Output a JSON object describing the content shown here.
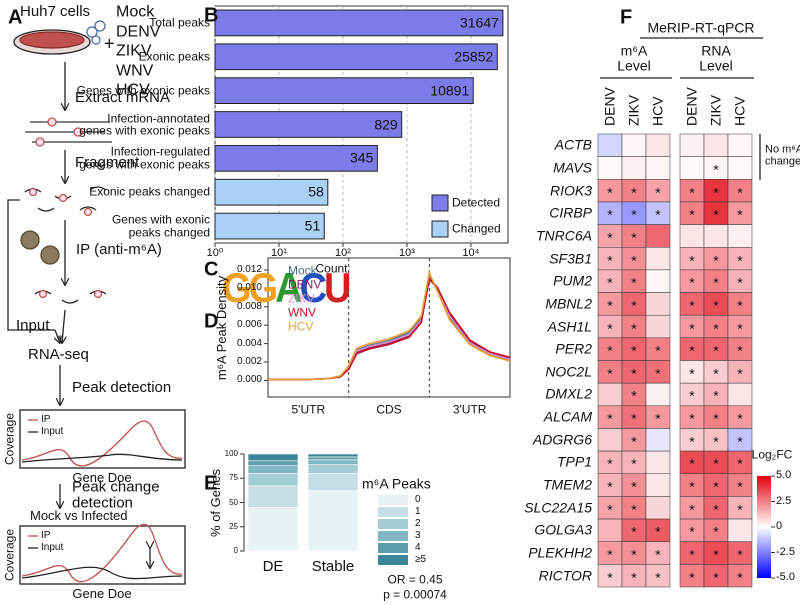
{
  "panel_labels": [
    "A",
    "B",
    "C",
    "D",
    "E",
    "F"
  ],
  "workflow": {
    "cells": "Huh7 cells",
    "plus": "+",
    "conditions": [
      "Mock",
      "DENV",
      "ZIKV",
      "WNV",
      "HCV"
    ],
    "steps": [
      "Extract mRNA",
      "Fragment",
      "IP (anti-m⁶A)",
      "RNA-seq",
      "Peak detection",
      "Peak change\ndetection"
    ],
    "input": "Input",
    "coverage_plots": [
      {
        "y_label": "Coverage",
        "x_label": "Gene Doe",
        "legend": [
          "IP",
          "Input"
        ]
      },
      {
        "y_label": "Coverage",
        "x_label": "Gene Doe",
        "legend": [
          "IP",
          "Input"
        ],
        "comparison": "Mock vs Infected"
      }
    ]
  },
  "motif": "GGACU",
  "chart_data": [
    {
      "type": "hbar",
      "x_label": "Count",
      "log_scale": true,
      "grid": true,
      "legend": "lower-right",
      "categories": [
        "Total peaks",
        "Exonic peaks",
        "Genes with exonic peaks",
        "Infection-annotated\ngenes with exonic peaks",
        "Infection-regulated\ngenes with exonic peaks",
        "Exonic peaks changed",
        "Genes with exonic\npeaks changed"
      ],
      "series": [
        {
          "name": "Detected",
          "color": "#7b7bea",
          "values": [
            31647,
            25852,
            10891,
            829,
            345,
            null,
            null
          ]
        },
        {
          "name": "Changed",
          "color": "#a9d0f5",
          "values": [
            null,
            null,
            null,
            null,
            null,
            58,
            51
          ]
        }
      ],
      "xlim": [
        1,
        38000
      ],
      "xticks": [
        {
          "value": 1,
          "label": "10⁰"
        },
        {
          "value": 10,
          "label": "10¹"
        },
        {
          "value": 100,
          "label": "10²"
        },
        {
          "value": 1000,
          "label": "10³"
        },
        {
          "value": 10000,
          "label": "10⁴"
        }
      ]
    },
    {
      "type": "line",
      "y_label": "m⁶A Peak Density",
      "legend": "upper-left",
      "regions": [
        "5'UTR",
        "CDS",
        "3'UTR"
      ],
      "region_boundaries": [
        1,
        2
      ],
      "x": [
        0,
        0.25,
        0.5,
        0.75,
        0.9,
        1.0,
        1.1,
        1.25,
        1.5,
        1.75,
        1.9,
        2.0,
        2.1,
        2.25,
        2.5,
        2.75,
        3.0
      ],
      "xlim": [
        0,
        3
      ],
      "ylim": [
        -0.0018,
        0.0133
      ],
      "yticks": [
        {
          "value": 0,
          "label": "0.000"
        },
        {
          "value": 0.002,
          "label": "0.002"
        },
        {
          "value": 0.004,
          "label": "0.004"
        },
        {
          "value": 0.006,
          "label": "0.006"
        },
        {
          "value": 0.008,
          "label": "0.008"
        },
        {
          "value": 0.01,
          "label": "0.010"
        },
        {
          "value": 0.012,
          "label": "0.012"
        }
      ],
      "series": [
        {
          "name": "Mock",
          "color": "#4a6a8a",
          "values": [
            0.0001,
            0.0001,
            0.0001,
            0.0002,
            0.0005,
            0.0015,
            0.0033,
            0.0038,
            0.0043,
            0.0052,
            0.0068,
            0.0113,
            0.0098,
            0.0068,
            0.004,
            0.0028,
            0.0022
          ]
        },
        {
          "name": "DENV",
          "color": "#8b1a5a",
          "values": [
            0.0001,
            0.0001,
            0.0001,
            0.0002,
            0.0004,
            0.0013,
            0.003,
            0.0035,
            0.004,
            0.0048,
            0.0064,
            0.011,
            0.01,
            0.0072,
            0.0043,
            0.003,
            0.0024
          ]
        },
        {
          "name": "ZIKV",
          "color": "#d68fc6",
          "values": [
            0.0001,
            0.0001,
            0.0001,
            0.0002,
            0.0005,
            0.0014,
            0.0032,
            0.0037,
            0.0042,
            0.005,
            0.0066,
            0.0112,
            0.0099,
            0.007,
            0.0041,
            0.0029,
            0.0023
          ]
        },
        {
          "name": "WNV",
          "color": "#c8102e",
          "values": [
            0.0001,
            0.0001,
            0.0001,
            0.0002,
            0.0004,
            0.0012,
            0.0029,
            0.0034,
            0.0039,
            0.0047,
            0.0063,
            0.0111,
            0.0101,
            0.0074,
            0.0044,
            0.0031,
            0.0025
          ]
        },
        {
          "name": "HCV",
          "color": "#e8a030",
          "values": [
            0.0001,
            0.0001,
            0.0001,
            0.0002,
            0.0005,
            0.0016,
            0.0035,
            0.004,
            0.0045,
            0.0054,
            0.007,
            0.0117,
            0.0097,
            0.0066,
            0.0039,
            0.0027,
            0.0021
          ]
        }
      ]
    },
    {
      "type": "stacked-bar",
      "y_label": "% of Genes",
      "legend_title": "m⁶A Peaks",
      "legend": "right",
      "categories": [
        "DE",
        "Stable"
      ],
      "ylim": [
        0,
        100
      ],
      "yticks": [
        0,
        25,
        50,
        75,
        100
      ],
      "series": [
        {
          "name": "0",
          "color": "#e6f2f4",
          "values": [
            45,
            62
          ]
        },
        {
          "name": "1",
          "color": "#c5dfe4",
          "values": [
            22,
            18
          ]
        },
        {
          "name": "2",
          "color": "#a3ccd4",
          "values": [
            13,
            9
          ]
        },
        {
          "name": "3",
          "color": "#80b6c1",
          "values": [
            8,
            5
          ]
        },
        {
          "name": "4",
          "color": "#5d9fad",
          "values": [
            5,
            3
          ]
        },
        {
          "name": "≥5",
          "color": "#3d8697",
          "values": [
            7,
            3
          ]
        }
      ],
      "annotations": [
        "OR = 0.45",
        "p = 0.00074"
      ]
    },
    {
      "type": "heatmap",
      "title": "MeRIP-RT-qPCR",
      "rows": [
        "ACTB",
        "MAVS",
        "RIOK3",
        "CIRBP",
        "TNRC6A",
        "SF3B1",
        "PUM2",
        "MBNL2",
        "ASH1L",
        "PER2",
        "NOC2L",
        "DMXL2",
        "ALCAM",
        "ADGRG6",
        "TPP1",
        "TMEM2",
        "SLC22A15",
        "GOLGA3",
        "PLEKHH2",
        "RICTOR"
      ],
      "note": "No m⁶A\nchange",
      "groups": [
        {
          "name": "m⁶A\nLevel",
          "columns": [
            "DENV",
            "ZIKV",
            "HCV"
          ],
          "values": [
            [
              -0.8,
              0.2,
              0.5
            ],
            [
              0.1,
              0.3,
              0.2
            ],
            [
              2.0,
              2.5,
              1.8
            ],
            [
              -1.5,
              -2.0,
              -1.2
            ],
            [
              1.8,
              2.5,
              3.0
            ],
            [
              1.5,
              2.2,
              0.5
            ],
            [
              1.5,
              2.5,
              0.2
            ],
            [
              2.0,
              3.0,
              0.8
            ],
            [
              1.5,
              2.5,
              0.8
            ],
            [
              2.5,
              3.0,
              2.5
            ],
            [
              2.5,
              3.0,
              2.8
            ],
            [
              1.0,
              2.5,
              0.3
            ],
            [
              2.0,
              2.8,
              2.0
            ],
            [
              1.0,
              2.0,
              -0.5
            ],
            [
              1.5,
              1.5,
              0.5
            ],
            [
              1.5,
              2.2,
              0.5
            ],
            [
              1.8,
              2.5,
              0.8
            ],
            [
              1.5,
              3.0,
              3.2
            ],
            [
              2.0,
              2.2,
              1.5
            ],
            [
              1.0,
              1.5,
              1.2
            ]
          ],
          "marks": [
            [
              null,
              null,
              null
            ],
            [
              null,
              null,
              null
            ],
            [
              "*",
              "*",
              "*"
            ],
            [
              "*",
              "*",
              "*"
            ],
            [
              "*",
              "*",
              null
            ],
            [
              "*",
              "*",
              null
            ],
            [
              "*",
              "*",
              null
            ],
            [
              "*",
              "*",
              null
            ],
            [
              "*",
              "*",
              null
            ],
            [
              "*",
              "*",
              "*"
            ],
            [
              "*",
              "*",
              "*"
            ],
            [
              null,
              "*",
              null
            ],
            [
              "*",
              "*",
              "*"
            ],
            [
              null,
              "*",
              null
            ],
            [
              "*",
              "*",
              null
            ],
            [
              "*",
              "*",
              null
            ],
            [
              "*",
              "*",
              null
            ],
            [
              null,
              "*",
              "*"
            ],
            [
              "*",
              "*",
              "*"
            ],
            [
              "*",
              "*",
              "*"
            ]
          ]
        },
        {
          "name": "RNA\nLevel",
          "columns": [
            "DENV",
            "ZIKV",
            "HCV"
          ],
          "values": [
            [
              0.3,
              0.5,
              0.2
            ],
            [
              0.1,
              0.2,
              0.1
            ],
            [
              2.5,
              4.0,
              2.5
            ],
            [
              2.5,
              4.0,
              2.0
            ],
            [
              0.5,
              0.5,
              0.3
            ],
            [
              1.5,
              2.0,
              1.5
            ],
            [
              2.0,
              2.5,
              1.5
            ],
            [
              3.0,
              3.5,
              2.5
            ],
            [
              2.0,
              2.5,
              2.0
            ],
            [
              3.0,
              3.0,
              2.5
            ],
            [
              0.5,
              1.0,
              1.5
            ],
            [
              1.0,
              1.5,
              0.5
            ],
            [
              2.0,
              2.5,
              2.0
            ],
            [
              1.0,
              1.2,
              -1.2
            ],
            [
              3.5,
              3.5,
              3.0
            ],
            [
              2.5,
              3.0,
              2.5
            ],
            [
              2.0,
              3.0,
              1.5
            ],
            [
              2.0,
              2.5,
              0.5
            ],
            [
              3.0,
              3.5,
              3.0
            ],
            [
              2.5,
              3.0,
              2.5
            ]
          ],
          "marks": [
            [
              null,
              null,
              null
            ],
            [
              null,
              "*",
              null
            ],
            [
              "*",
              "*",
              "*"
            ],
            [
              "*",
              "*",
              "*"
            ],
            [
              null,
              null,
              null
            ],
            [
              "*",
              "*",
              "*"
            ],
            [
              "*",
              "*",
              "*"
            ],
            [
              "*",
              "*",
              "*"
            ],
            [
              "*",
              "*",
              "*"
            ],
            [
              "*",
              "*",
              "*"
            ],
            [
              "*",
              "*",
              "*"
            ],
            [
              "*",
              "*",
              null
            ],
            [
              "*",
              "*",
              "*"
            ],
            [
              "*",
              "*",
              "*"
            ],
            [
              "*",
              "*",
              "*"
            ],
            [
              "*",
              "*",
              "*"
            ],
            [
              "*",
              "*",
              "*"
            ],
            [
              "*",
              "*",
              null
            ],
            [
              "*",
              "*",
              "*"
            ],
            [
              "*",
              "*",
              "*"
            ]
          ]
        }
      ],
      "colorbar": {
        "title": "Log₂FC",
        "lim": [
          -5,
          5
        ],
        "colors": [
          "#0000ff",
          "#ffffff",
          "#e3000f"
        ],
        "ticks": [
          {
            "value": 5,
            "label": "5.0"
          },
          {
            "value": 2.5,
            "label": "2.5"
          },
          {
            "value": 0,
            "label": "0"
          },
          {
            "value": -2.5,
            "label": "-2.5"
          },
          {
            "value": -5,
            "label": "-5.0"
          }
        ]
      }
    }
  ]
}
